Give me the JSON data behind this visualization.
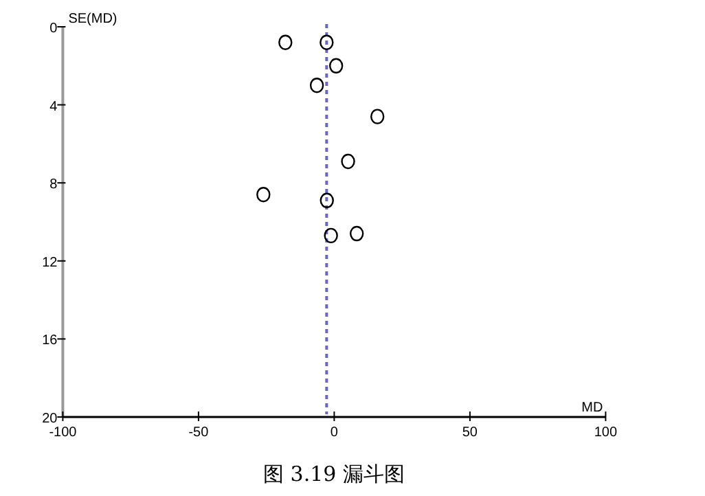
{
  "chart_data": {
    "type": "scatter",
    "xlabel": "MD",
    "ylabel": "SE(MD)",
    "annotations": [
      "图 3.19 漏斗图"
    ],
    "x": [
      -18,
      -2.8,
      0.7,
      -6.4,
      15.9,
      5.1,
      -26.1,
      -2.7,
      -1.2,
      8.3
    ],
    "series": [
      {
        "color": "#000000",
        "values": [
          0.8,
          0.8,
          2.0,
          3.0,
          4.6,
          6.9,
          8.6,
          8.9,
          10.7,
          10.6
        ]
      }
    ],
    "marker": "circle",
    "xlim": [
      -100,
      100
    ],
    "xticks": [
      -100,
      -50,
      0,
      50,
      100
    ],
    "ylim": [
      20,
      0
    ],
    "yticks": [
      0,
      4,
      8,
      12,
      16,
      20
    ],
    "ref_lines": [
      {
        "axis": "x",
        "value": -2.8,
        "color": "#6666cc",
        "line_style": "dotted"
      }
    ]
  }
}
